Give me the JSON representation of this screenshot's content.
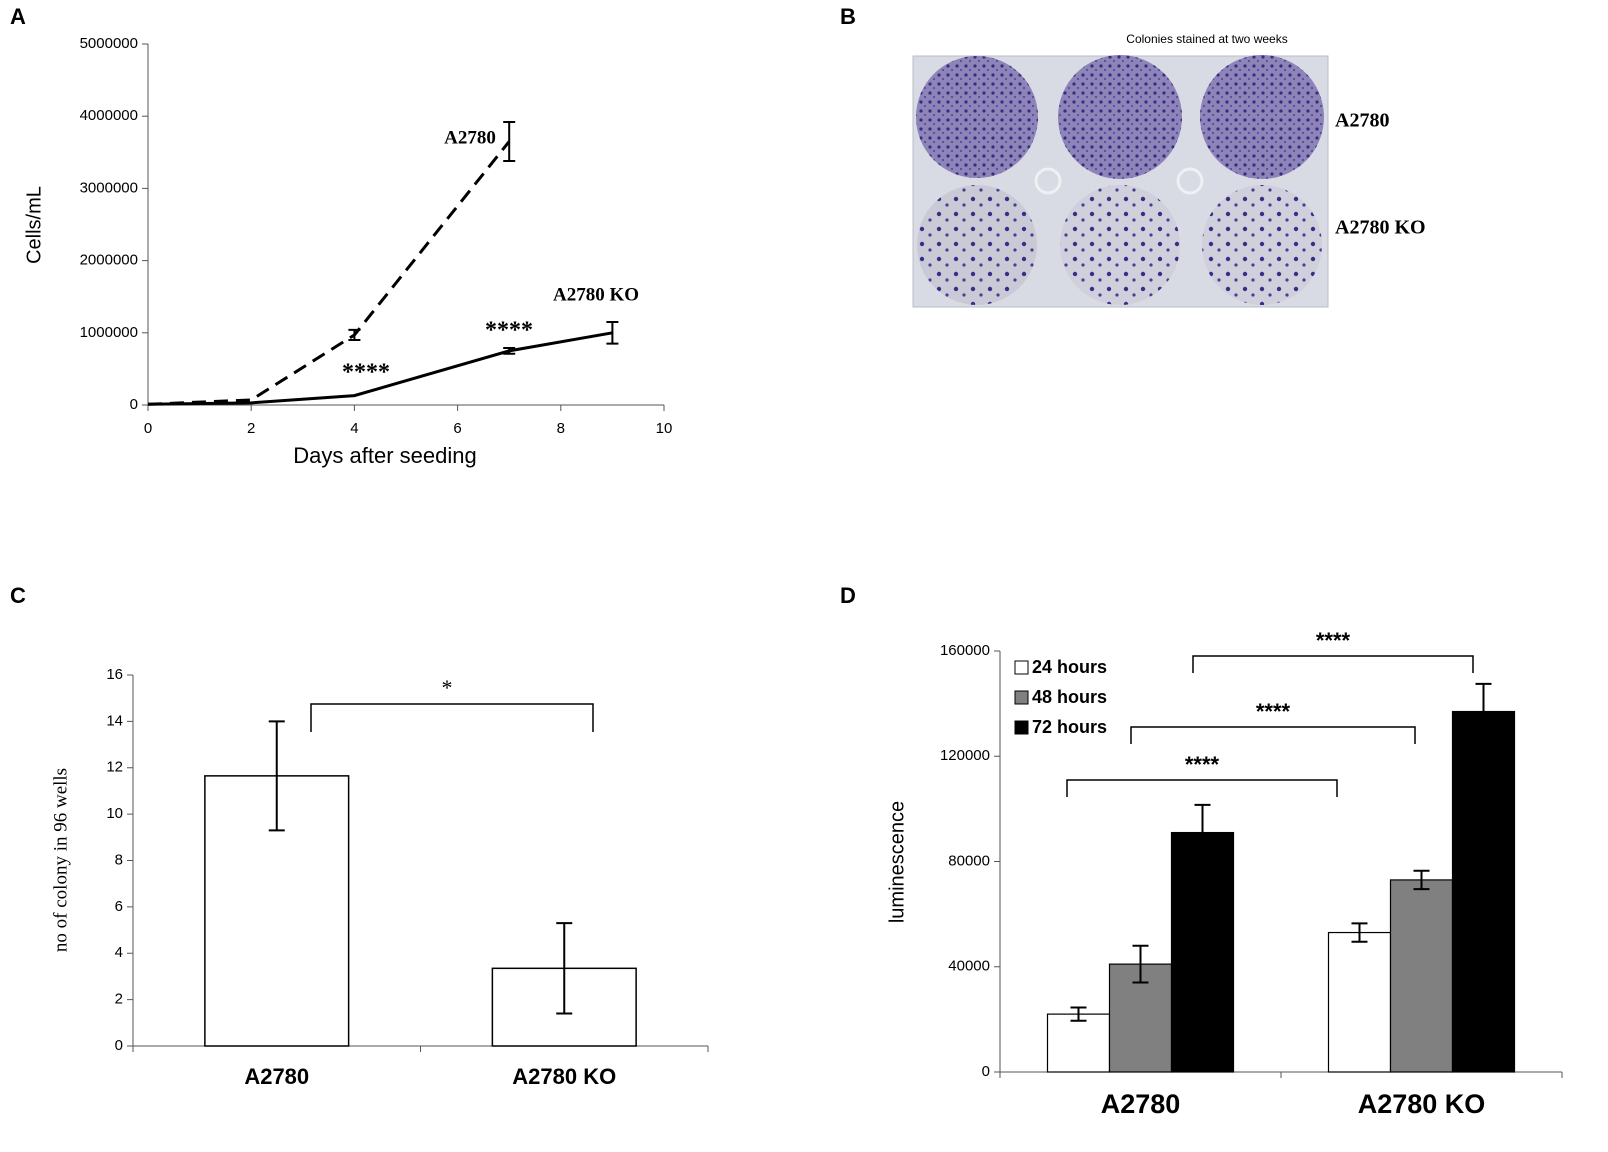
{
  "chart_data": [
    {
      "type": "line",
      "panel_label": "A",
      "ylabel": "Cells/mL",
      "xlabel": "Days after seeding",
      "xlim": [
        0,
        10
      ],
      "xticks": [
        0,
        2,
        4,
        6,
        8,
        10
      ],
      "ylim": [
        0,
        5000000
      ],
      "yticks": [
        0,
        1000000,
        2000000,
        3000000,
        4000000,
        5000000
      ],
      "series": [
        {
          "name": "A2780",
          "color": "#000000",
          "line_style": "dashed",
          "x": [
            0,
            2,
            4,
            7
          ],
          "values": [
            10000,
            70000,
            970000,
            3650000
          ],
          "errors": [
            null,
            null,
            70000,
            270000
          ]
        },
        {
          "name": "A2780 KO",
          "color": "#000000",
          "line_style": "solid",
          "x": [
            0,
            2,
            4,
            7,
            9
          ],
          "values": [
            10000,
            30000,
            130000,
            750000,
            1000000
          ],
          "errors": [
            null,
            null,
            null,
            40000,
            150000
          ]
        }
      ],
      "annotations": [
        "****",
        "****"
      ]
    },
    {
      "type": "bar",
      "panel_label": "C",
      "ylabel": "no of colony in 96 wells",
      "categories": [
        "A2780",
        "A2780 KO"
      ],
      "values": [
        11.65,
        3.35
      ],
      "errors": [
        2.35,
        1.95
      ],
      "color": "#ffffff",
      "ylim": [
        0,
        16
      ],
      "yticks": [
        0,
        2,
        4,
        6,
        8,
        10,
        12,
        14,
        16
      ],
      "annotations": [
        "*"
      ]
    },
    {
      "type": "grouped_bar",
      "panel_label": "D",
      "ylabel": "luminescence",
      "categories": [
        "A2780",
        "A2780 KO"
      ],
      "legend": "top-left",
      "ylim": [
        0,
        160000
      ],
      "yticks": [
        0,
        40000,
        80000,
        120000,
        160000
      ],
      "series": [
        {
          "name": "24 hours",
          "color": "#ffffff",
          "values": [
            22000,
            53000
          ],
          "errors": [
            2500,
            3500
          ]
        },
        {
          "name": "48 hours",
          "color": "#808080",
          "values": [
            41000,
            73000
          ],
          "errors": [
            7000,
            3500
          ]
        },
        {
          "name": "72 hours",
          "color": "#000000",
          "values": [
            91000,
            137000
          ],
          "errors": [
            10500,
            10500
          ]
        }
      ],
      "annotations": [
        "****",
        "****",
        "****"
      ]
    }
  ],
  "photo_panel": {
    "panel_label": "B",
    "title": "Colonies stained at two weeks",
    "row_labels": [
      "A2780",
      "A2780 KO"
    ]
  }
}
